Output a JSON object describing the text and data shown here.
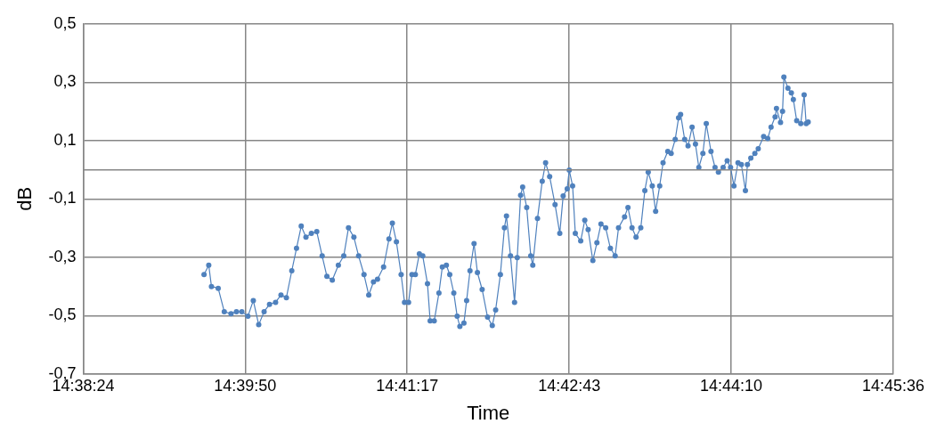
{
  "chart_data": {
    "type": "line",
    "xlabel": "Time",
    "ylabel": "dB",
    "xlim": [
      14.64,
      14.76
    ],
    "xticks": [
      {
        "value": 14.64,
        "label": "14:38:24"
      },
      {
        "value": 14.664,
        "label": "14:39:50"
      },
      {
        "value": 14.688,
        "label": "14:41:17"
      },
      {
        "value": 14.712,
        "label": "14:42:43"
      },
      {
        "value": 14.736,
        "label": "14:44:10"
      },
      {
        "value": 14.76,
        "label": "14:45:36"
      }
    ],
    "ylim": [
      -0.7,
      0.5
    ],
    "yticks": [
      {
        "value": -0.7,
        "label": "-0,7"
      },
      {
        "value": -0.5,
        "label": "-0,5"
      },
      {
        "value": -0.3,
        "label": "-0,3"
      },
      {
        "value": -0.1,
        "label": "-0,1"
      },
      {
        "value": 0.1,
        "label": "0,1"
      },
      {
        "value": 0.3,
        "label": "0,3"
      },
      {
        "value": 0.5,
        "label": "0,5"
      }
    ],
    "grid": true,
    "legend": false,
    "marker": "circle",
    "line_style": "solid",
    "ref_lines": [
      {
        "axis": "y",
        "value": 0,
        "color": "#868686"
      }
    ],
    "x": [
      14.6579,
      14.6586,
      14.659,
      14.66,
      14.6609,
      14.6619,
      14.6627,
      14.6635,
      14.6644,
      14.6652,
      14.666,
      14.6668,
      14.6676,
      14.6685,
      14.6693,
      14.6701,
      14.6709,
      14.6716,
      14.6723,
      14.673,
      14.6738,
      14.6746,
      14.6754,
      14.6761,
      14.6769,
      14.6778,
      14.6786,
      14.6793,
      14.6801,
      14.6808,
      14.6816,
      14.6823,
      14.683,
      14.6836,
      14.6845,
      14.6853,
      14.6858,
      14.6864,
      14.6871,
      14.6876,
      14.6882,
      14.6887,
      14.6892,
      14.6898,
      14.6903,
      14.691,
      14.6914,
      14.692,
      14.6927,
      14.6932,
      14.6938,
      14.6943,
      14.6949,
      14.6954,
      14.6958,
      14.6964,
      14.6968,
      14.6973,
      14.6979,
      14.6984,
      14.6991,
      14.6999,
      14.7006,
      14.7011,
      14.7018,
      14.7024,
      14.7027,
      14.7033,
      14.7039,
      14.7043,
      14.7048,
      14.7051,
      14.7057,
      14.7063,
      14.7066,
      14.7073,
      14.708,
      14.7085,
      14.7091,
      14.7099,
      14.7106,
      14.7111,
      14.7117,
      14.712,
      14.7125,
      14.7129,
      14.7137,
      14.7143,
      14.7148,
      14.7155,
      14.7161,
      14.7167,
      14.7174,
      14.7181,
      14.7188,
      14.7193,
      14.7202,
      14.7207,
      14.7213,
      14.7219,
      14.7226,
      14.7232,
      14.7237,
      14.7243,
      14.7248,
      14.7254,
      14.7259,
      14.7266,
      14.7271,
      14.7277,
      14.7282,
      14.7285,
      14.7291,
      14.7296,
      14.7302,
      14.7307,
      14.7312,
      14.7318,
      14.7323,
      14.733,
      14.7336,
      14.7341,
      14.7348,
      14.7354,
      14.7359,
      14.7364,
      14.737,
      14.7375,
      14.7381,
      14.7384,
      14.7389,
      14.7395,
      14.74,
      14.7408,
      14.7414,
      14.7419,
      14.7425,
      14.7427,
      14.7433,
      14.7436,
      14.7438,
      14.7444,
      14.7449,
      14.7452,
      14.7457,
      14.7463,
      14.7468,
      14.7471,
      14.7474
    ],
    "series": [
      {
        "color": "#4f81bd",
        "values": [
          -0.359,
          -0.327,
          -0.4,
          -0.406,
          -0.486,
          -0.493,
          -0.486,
          -0.486,
          -0.502,
          -0.448,
          -0.531,
          -0.486,
          -0.461,
          -0.454,
          -0.429,
          -0.438,
          -0.346,
          -0.269,
          -0.193,
          -0.231,
          -0.218,
          -0.212,
          -0.295,
          -0.365,
          -0.378,
          -0.327,
          -0.295,
          -0.199,
          -0.231,
          -0.295,
          -0.359,
          -0.429,
          -0.384,
          -0.375,
          -0.333,
          -0.237,
          -0.183,
          -0.247,
          -0.359,
          -0.454,
          -0.454,
          -0.359,
          -0.359,
          -0.288,
          -0.295,
          -0.39,
          -0.518,
          -0.518,
          -0.422,
          -0.333,
          -0.327,
          -0.359,
          -0.422,
          -0.502,
          -0.537,
          -0.525,
          -0.448,
          -0.346,
          -0.253,
          -0.352,
          -0.41,
          -0.505,
          -0.534,
          -0.48,
          -0.359,
          -0.199,
          -0.158,
          -0.295,
          -0.454,
          -0.301,
          -0.087,
          -0.059,
          -0.129,
          -0.295,
          -0.327,
          -0.167,
          -0.039,
          0.024,
          -0.023,
          -0.119,
          -0.218,
          -0.09,
          -0.065,
          -0.001,
          -0.055,
          -0.218,
          -0.244,
          -0.173,
          -0.205,
          -0.311,
          -0.25,
          -0.186,
          -0.199,
          -0.269,
          -0.295,
          -0.199,
          -0.161,
          -0.129,
          -0.199,
          -0.231,
          -0.199,
          -0.071,
          -0.008,
          -0.055,
          -0.142,
          -0.055,
          0.024,
          0.063,
          0.056,
          0.104,
          0.178,
          0.19,
          0.104,
          0.082,
          0.146,
          0.088,
          0.008,
          0.056,
          0.158,
          0.063,
          0.008,
          -0.008,
          0.008,
          0.031,
          0.008,
          -0.055,
          0.024,
          0.018,
          -0.071,
          0.018,
          0.04,
          0.056,
          0.072,
          0.114,
          0.107,
          0.146,
          0.181,
          0.21,
          0.162,
          0.2,
          0.318,
          0.28,
          0.264,
          0.241,
          0.168,
          0.158,
          0.257,
          0.158,
          0.164
        ]
      }
    ]
  }
}
